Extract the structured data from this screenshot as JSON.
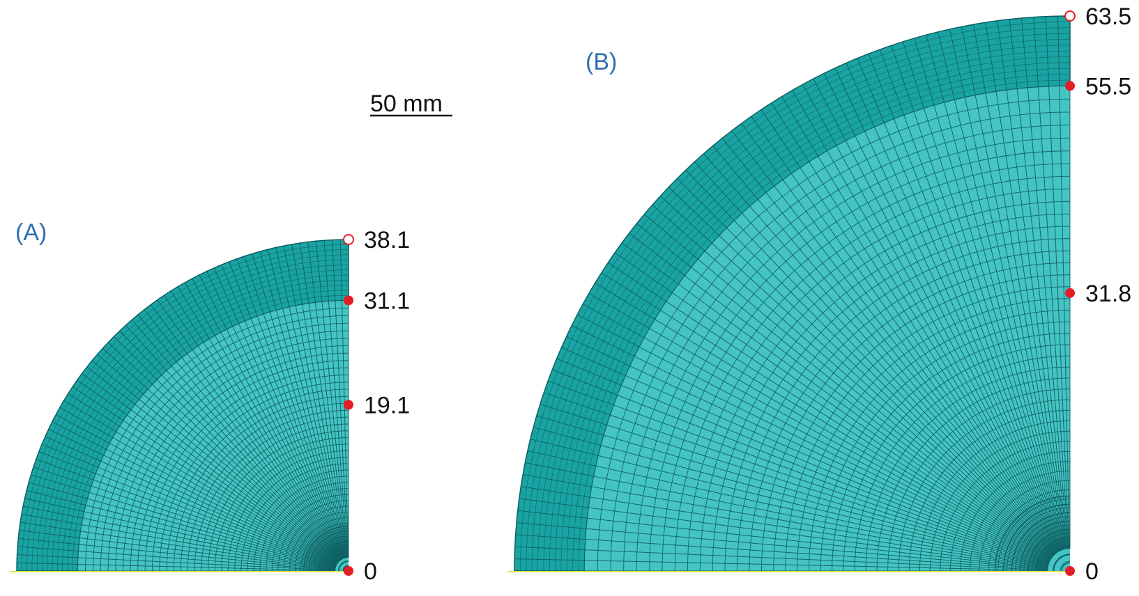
{
  "scale_bar": {
    "label": "50 mm"
  },
  "colors": {
    "outer_ring": "#1aa3a3",
    "inner_core": "#45c4c4",
    "mesh_line": "#0d5f60",
    "marker": "#e31e24",
    "panel_label": "#2f6fb5",
    "axis_line": "#e6e04a"
  },
  "panels": [
    {
      "id": "A",
      "label": "(A)",
      "outer_radius": 38.1,
      "inner_radius": 31.1,
      "markers": [
        {
          "value": 38.1,
          "label": "38.1",
          "hollow": true
        },
        {
          "value": 31.1,
          "label": "31.1",
          "hollow": false
        },
        {
          "value": 19.1,
          "label": "19.1",
          "hollow": false
        },
        {
          "value": 0,
          "label": "0",
          "hollow": false
        }
      ]
    },
    {
      "id": "B",
      "label": "(B)",
      "outer_radius": 63.5,
      "inner_radius": 55.5,
      "markers": [
        {
          "value": 63.5,
          "label": "63.5",
          "hollow": true
        },
        {
          "value": 55.5,
          "label": "55.5",
          "hollow": false
        },
        {
          "value": 31.8,
          "label": "31.8",
          "hollow": false
        },
        {
          "value": 0,
          "label": "0",
          "hollow": false
        }
      ]
    }
  ]
}
